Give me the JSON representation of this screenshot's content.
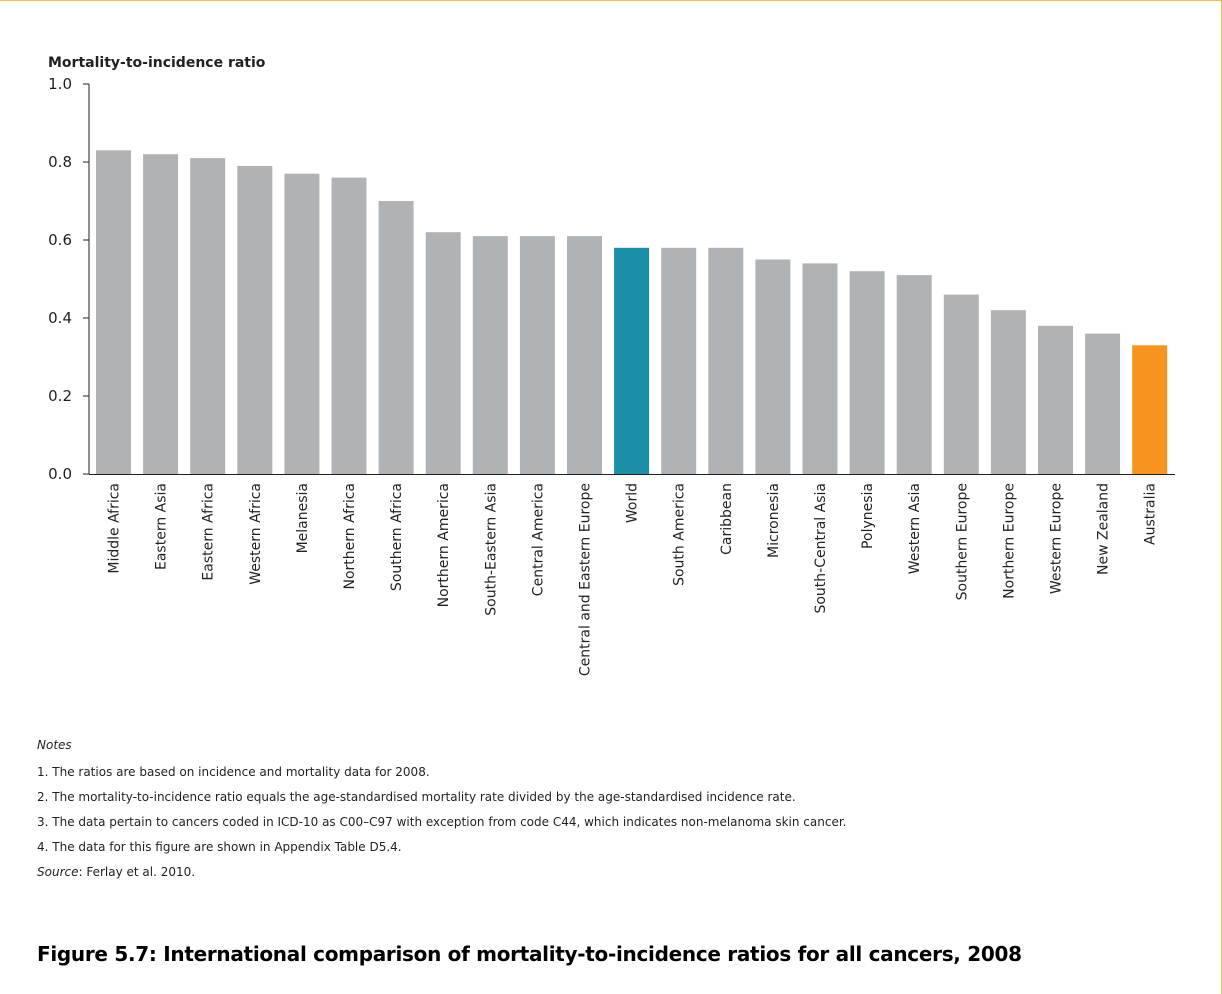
{
  "chart_data": {
    "type": "bar",
    "ylabel": "Mortality-to-incidence ratio",
    "xlabel": "",
    "ylim": [
      0,
      1.0
    ],
    "yticks": [
      "0.0",
      "0.2",
      "0.4",
      "0.6",
      "0.8",
      "1.0"
    ],
    "grid": false,
    "categories": [
      "Middle Africa",
      "Eastern Asia",
      "Eastern Africa",
      "Western Africa",
      "Melanesia",
      "Northern Africa",
      "Southern Africa",
      "Northern America",
      "South-Eastern Asia",
      "Central America",
      "Central and Eastern Europe",
      "World",
      "South America",
      "Caribbean",
      "Micronesia",
      "South-Central Asia",
      "Polynesia",
      "Western Asia",
      "Southern Europe",
      "Northern Europe",
      "Western Europe",
      "New Zealand",
      "Australia"
    ],
    "values": [
      0.83,
      0.82,
      0.81,
      0.79,
      0.77,
      0.76,
      0.7,
      0.62,
      0.61,
      0.61,
      0.61,
      0.58,
      0.58,
      0.58,
      0.55,
      0.54,
      0.52,
      0.51,
      0.46,
      0.42,
      0.38,
      0.36,
      0.33
    ],
    "colors": {
      "default": "#b0b3b6",
      "highlights": {
        "World": "#1a8fa6",
        "Australia": "#f7941d"
      },
      "axis": "#231f20"
    }
  },
  "notes": {
    "heading": "Notes",
    "items": [
      "1. The ratios are based on incidence and mortality data for 2008.",
      "2. The mortality-to-incidence ratio equals the age-standardised mortality rate divided by the age-standardised incidence rate.",
      "3. The data pertain to cancers coded in ICD-10 as C00–C97 with exception from code C44, which indicates non-melanoma skin cancer.",
      "4. The data for this figure are shown in Appendix Table D5.4."
    ],
    "source_label": "Source",
    "source_text": ": Ferlay et al. 2010."
  },
  "figure": {
    "title": "Figure 5.7: International comparison of mortality-to-incidence ratios for all cancers, 2008"
  }
}
